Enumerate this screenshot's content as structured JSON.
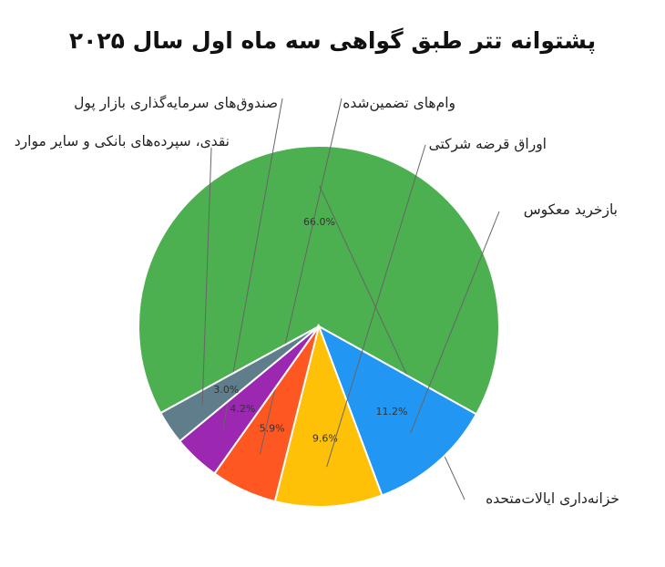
{
  "chart_data": {
    "type": "pie",
    "title": "پشتوانه تتر طبق گواهی سه ماه اول سال ۲۰۲۵",
    "slices": [
      {
        "label": "خزانه‌داری ایالات‌متحده",
        "value": 66.0,
        "value_label": "66.0%",
        "color": "#4caf50"
      },
      {
        "label": "بازخرید معکوس",
        "value": 11.2,
        "value_label": "11.2%",
        "color": "#2196f3"
      },
      {
        "label": "اوراق قرضه شرکتی",
        "value": 9.6,
        "value_label": "9.6%",
        "color": "#ffc107"
      },
      {
        "label": "وام‌های تضمین‌شده",
        "value": 5.9,
        "value_label": "5.9%",
        "color": "#ff5722"
      },
      {
        "label": "صندوق‌های سرمایه‌گذاری بازار پول",
        "value": 4.2,
        "value_label": "4.2%",
        "color": "#9c27b0"
      },
      {
        "label": "نقدی، سپرده‌های بانکی و سایر موارد",
        "value": 3.0,
        "value_label": "3.0%",
        "color": "#607d8b"
      }
    ]
  }
}
